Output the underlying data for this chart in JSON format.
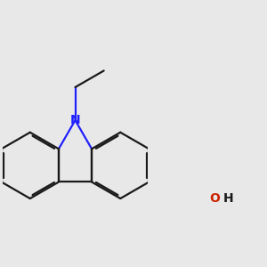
{
  "background_color": "#e8e8e8",
  "bond_color": "#1a1a1a",
  "nitrogen_color": "#2020ff",
  "oxygen_color": "#cc2200",
  "bond_width": 1.6,
  "dbo": 0.055,
  "figsize": [
    3.0,
    3.0
  ],
  "dpi": 100,
  "xlim": [
    -2.2,
    2.2
  ],
  "ylim": [
    -2.6,
    1.8
  ]
}
